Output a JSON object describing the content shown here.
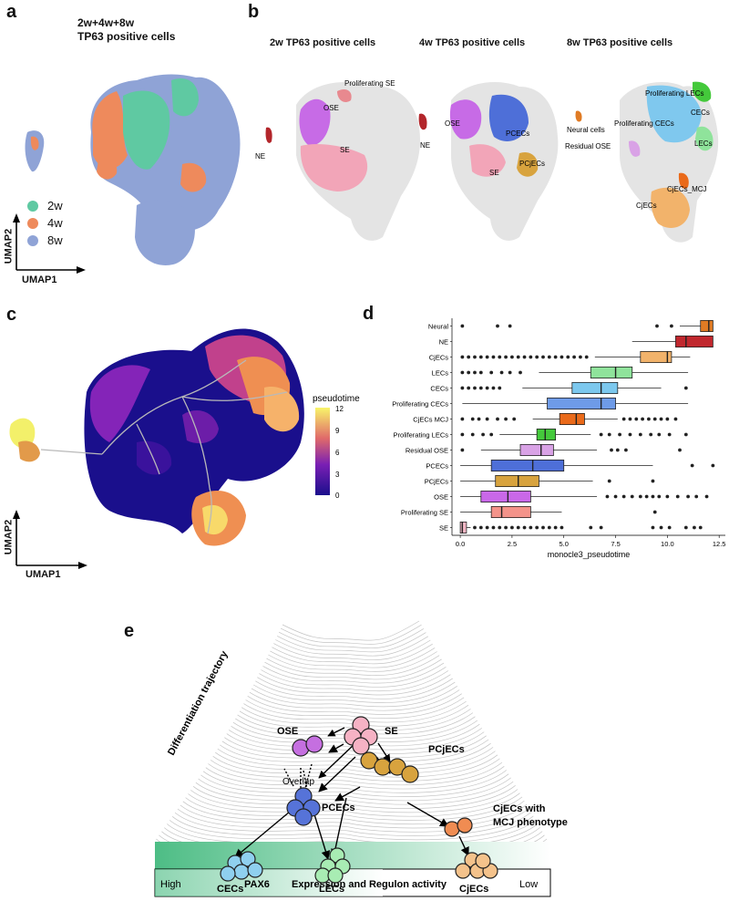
{
  "panel_a": {
    "letter": "a",
    "title_line1": "2w+4w+8w",
    "title_line2": "TP63 positive cells",
    "legend": [
      {
        "label": "2w",
        "color": "#5fc9a2"
      },
      {
        "label": "4w",
        "color": "#ee8a5c"
      },
      {
        "label": "8w",
        "color": "#8fa3d6"
      }
    ],
    "axis_x": "UMAP1",
    "axis_y": "UMAP2"
  },
  "panel_b": {
    "letter": "b",
    "plots": [
      {
        "title": "2w TP63 positive cells",
        "labels": [
          "Proliferating SE",
          "OSE",
          "SE",
          "NE"
        ]
      },
      {
        "title": "4w TP63 positive cells",
        "labels": [
          "OSE",
          "NE",
          "PCECs",
          "SE",
          "PCjECs"
        ]
      },
      {
        "title": "8w TP63 positive cells",
        "labels": [
          "Proliferating LECs",
          "CECs",
          "Proliferating CECs",
          "Neural cells",
          "Residual OSE",
          "LECs",
          "CjECs_MCJ",
          "CjECs"
        ]
      }
    ]
  },
  "panel_c": {
    "letter": "c",
    "legend_title": "pseudotime",
    "legend_ticks": [
      "12",
      "9",
      "6",
      "3",
      "0"
    ],
    "axis_x": "UMAP1",
    "axis_y": "UMAP2"
  },
  "panel_d": {
    "letter": "d",
    "xlabel": "monocle3_pseudotime",
    "x_ticks": [
      "0.0",
      "2.5",
      "5.0",
      "7.5",
      "10.0",
      "12.5"
    ],
    "xlim": [
      -0.4,
      12.8
    ]
  },
  "chart_data": {
    "type": "box",
    "title": "",
    "xlabel": "monocle3_pseudotime",
    "ylabel": "",
    "xlim": [
      -0.4,
      12.8
    ],
    "categories": [
      "Neural",
      "NE",
      "CjECs",
      "LECs",
      "CECs",
      "Proliferating CECs",
      "CjECs MCJ",
      "Proliferating LECs",
      "Residual OSE",
      "PCECs",
      "PCjECs",
      "OSE",
      "Proliferating SE",
      "SE"
    ],
    "boxes": [
      {
        "name": "Neural",
        "color": "#e07b24",
        "min": 10.6,
        "q1": 11.6,
        "median": 12.0,
        "q3": 12.2,
        "max": 12.2,
        "outliers": [
          0.1,
          1.8,
          2.4,
          9.5,
          10.2
        ]
      },
      {
        "name": "NE",
        "color": "#c0272d",
        "min": 8.3,
        "q1": 10.4,
        "median": 10.9,
        "q3": 12.2,
        "max": 12.2,
        "outliers": []
      },
      {
        "name": "CjECs",
        "color": "#f2b36b",
        "min": 6.5,
        "q1": 8.7,
        "median": 10.0,
        "q3": 10.2,
        "max": 11.1,
        "outliers": [
          0.1,
          0.4,
          0.7,
          1.0,
          1.3,
          1.6,
          1.9,
          2.2,
          2.5,
          2.8,
          3.1,
          3.4,
          3.7,
          4.0,
          4.3,
          4.6,
          4.9,
          5.2,
          5.5,
          5.8,
          6.1
        ]
      },
      {
        "name": "LECs",
        "color": "#8fe39b",
        "min": 3.8,
        "q1": 6.3,
        "median": 7.5,
        "q3": 8.3,
        "max": 11.0,
        "outliers": [
          0.1,
          0.4,
          0.7,
          1.0,
          1.5,
          2.0,
          2.4,
          2.9
        ]
      },
      {
        "name": "CECs",
        "color": "#7cc8ee",
        "min": 3.0,
        "q1": 5.4,
        "median": 6.8,
        "q3": 7.6,
        "max": 9.7,
        "outliers": [
          0.1,
          0.4,
          0.7,
          1.0,
          1.3,
          1.6,
          1.9,
          10.9
        ]
      },
      {
        "name": "Proliferating CECs",
        "color": "#6e9be8",
        "min": 0.1,
        "q1": 4.2,
        "median": 6.8,
        "q3": 7.5,
        "max": 11.0,
        "outliers": []
      },
      {
        "name": "CjECs MCJ",
        "color": "#ea6a1a",
        "min": 3.5,
        "q1": 4.8,
        "median": 5.6,
        "q3": 6.0,
        "max": 7.6,
        "outliers": [
          0.1,
          0.6,
          0.9,
          1.3,
          1.8,
          2.2,
          2.6,
          7.9,
          8.2,
          8.5,
          8.8,
          9.1,
          9.4,
          9.7,
          10.0,
          10.4
        ]
      },
      {
        "name": "Proliferating LECs",
        "color": "#44c93b",
        "min": 1.9,
        "q1": 3.7,
        "median": 4.1,
        "q3": 4.6,
        "max": 6.3,
        "outliers": [
          0.1,
          0.6,
          1.1,
          1.5,
          6.8,
          7.2,
          7.7,
          8.2,
          8.7,
          9.2,
          9.6,
          10.1,
          10.9
        ]
      },
      {
        "name": "Residual OSE",
        "color": "#d9a2e6",
        "min": 1.0,
        "q1": 2.9,
        "median": 3.9,
        "q3": 4.5,
        "max": 6.6,
        "outliers": [
          0.1,
          7.3,
          7.6,
          8.0,
          10.6
        ]
      },
      {
        "name": "PCECs",
        "color": "#4e6fd8",
        "min": 0.0,
        "q1": 1.5,
        "median": 3.5,
        "q3": 5.0,
        "max": 9.3,
        "outliers": [
          11.2,
          12.2
        ]
      },
      {
        "name": "PCjECs",
        "color": "#d8a33e",
        "min": 0.0,
        "q1": 1.7,
        "median": 2.8,
        "q3": 3.8,
        "max": 6.4,
        "outliers": [
          7.2,
          9.3
        ]
      },
      {
        "name": "OSE",
        "color": "#c968e8",
        "min": 0.0,
        "q1": 1.0,
        "median": 2.3,
        "q3": 3.4,
        "max": 6.6,
        "outliers": [
          7.1,
          7.5,
          7.9,
          8.3,
          8.7,
          9.0,
          9.3,
          9.6,
          10.0,
          10.5,
          11.0,
          11.4,
          11.9
        ]
      },
      {
        "name": "Proliferating SE",
        "color": "#f4938a",
        "min": 0.0,
        "q1": 1.5,
        "median": 2.0,
        "q3": 3.4,
        "max": 4.9,
        "outliers": [
          9.4
        ]
      },
      {
        "name": "SE",
        "color": "#f5b8c6",
        "min": 0.0,
        "q1": 0.0,
        "median": 0.1,
        "q3": 0.3,
        "max": 0.5,
        "outliers": [
          0.7,
          1.0,
          1.3,
          1.6,
          1.9,
          2.2,
          2.5,
          2.8,
          3.1,
          3.4,
          3.7,
          4.0,
          4.3,
          4.6,
          4.9,
          6.3,
          6.8,
          9.3,
          9.7,
          10.1,
          10.9,
          11.3,
          11.6
        ]
      }
    ]
  },
  "panel_e": {
    "letter": "e",
    "side_label": "Differentiation trajectory",
    "nodes": [
      {
        "label": "SE",
        "color": "#f6b2c4"
      },
      {
        "label": "OSE",
        "color": "#c56fe0"
      },
      {
        "label": "PCjECs",
        "color": "#d8a33e"
      },
      {
        "label": "PCECs",
        "color": "#5673d8"
      },
      {
        "label": "CjECs with",
        "label2": "MCJ phenotype",
        "color": "#f08c52"
      },
      {
        "label": "CECs",
        "color": "#8fd0ef"
      },
      {
        "label": "LECs",
        "color": "#a8ecb3"
      },
      {
        "label": "CjECs",
        "color": "#f4c28b"
      }
    ],
    "overlap_label": "Overlap",
    "bar_high": "High",
    "bar_gene": "PAX6",
    "bar_text": "Expression and Regulon  activity",
    "bar_low": "Low",
    "bar_color": "#4dbd85"
  }
}
